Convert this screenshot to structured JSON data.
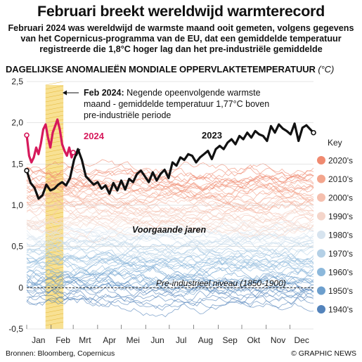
{
  "title": "Februari breekt wereldwijd warmterecord",
  "subtitle": "Februari 2024 was wereldwijd de warmste maand ooit gemeten, volgens gegevens van het Copernicus-programma van de EU, dat een gemiddelde temperatuur registreerde die 1,8°C hoger lag dan het pre-industriële gemiddelde",
  "axis_title": "DAGELIJKSE ANOMALIEËN MONDIALE OPPERVLAKTETEMPERATUUR",
  "axis_unit": "(°C)",
  "annotation": {
    "bold": "Feb 2024:",
    "lines": [
      " Negende opeenvolgende warmste",
      "maand - gemiddelde temperatuur 1,77°C boven",
      "pre-industriële periode"
    ]
  },
  "labels": {
    "previous_years": "Voorgaande jaren",
    "baseline": "Pre-industrieel niveau (1850-1900)",
    "year_2024": "2024",
    "year_2023": "2023",
    "key_title": "Key"
  },
  "source": "Bronnen: Bloomberg, Copernicus",
  "credit": "© GRAPHIC NEWS",
  "colors": {
    "series_2024": "#d6195b",
    "series_2023": "#111111",
    "highlight": "#f3c83a",
    "key": [
      "#f08a70",
      "#f3a58d",
      "#f5bfae",
      "#f4d5ca",
      "#d7e4ef",
      "#b4d0e6",
      "#8cb8db",
      "#6d9fcd",
      "#5383bb"
    ]
  },
  "chart_data": {
    "type": "line",
    "title": "DAGELIJKSE ANOMALIEËN MONDIALE OPPERVLAKTETEMPERATUUR",
    "ylabel": "°C",
    "ylim": [
      -0.5,
      2.5
    ],
    "yticks": [
      "2,5",
      "2,0",
      "1,5",
      "1,0",
      "0,5",
      "0",
      "-0,5"
    ],
    "ytick_values": [
      2.5,
      2.0,
      1.5,
      1.0,
      0.5,
      0,
      -0.5
    ],
    "categories": [
      "Jan",
      "Feb",
      "Mrt",
      "Apr",
      "Mei",
      "Jun",
      "Jul",
      "Aug",
      "Sep",
      "Okt",
      "Nov",
      "Dec"
    ],
    "baseline": 0,
    "highlight_month": "Feb",
    "legend_position": "right",
    "decades": [
      "2020's",
      "2010's",
      "2000's",
      "1990's",
      "1980's",
      "1970's",
      "1960's",
      "1950's",
      "1940's"
    ],
    "series": [
      {
        "name": "2023",
        "x": [
          1,
          6,
          11,
          16,
          21,
          26,
          31,
          36,
          41,
          46,
          51,
          56,
          61,
          66,
          71,
          76,
          81,
          86,
          91,
          96,
          101,
          106,
          111,
          116,
          121,
          126,
          131,
          136,
          141,
          146,
          151,
          156,
          161,
          166,
          171,
          176,
          181,
          186,
          191,
          196,
          201,
          206,
          211,
          216,
          221,
          226,
          231,
          236,
          241,
          246,
          251,
          256,
          261,
          266,
          271,
          276,
          281,
          286,
          291,
          296,
          301,
          306,
          311,
          316,
          321,
          326,
          331,
          336,
          341,
          346,
          351,
          356,
          361,
          365
        ],
        "values": [
          1.42,
          1.27,
          1.21,
          1.08,
          1.12,
          1.25,
          1.18,
          1.2,
          1.25,
          1.28,
          1.24,
          1.33,
          1.55,
          1.68,
          1.55,
          1.35,
          1.3,
          1.25,
          1.28,
          1.2,
          1.24,
          1.14,
          1.27,
          1.18,
          1.3,
          1.19,
          1.32,
          1.28,
          1.38,
          1.42,
          1.35,
          1.28,
          1.4,
          1.3,
          1.38,
          1.43,
          1.33,
          1.52,
          1.48,
          1.58,
          1.55,
          1.62,
          1.6,
          1.52,
          1.58,
          1.62,
          1.66,
          1.56,
          1.68,
          1.72,
          1.68,
          1.76,
          1.8,
          1.74,
          1.84,
          1.8,
          1.88,
          1.82,
          1.9,
          1.86,
          1.84,
          1.78,
          1.96,
          1.88,
          1.98,
          1.93,
          1.9,
          1.86,
          1.99,
          1.78,
          1.94,
          1.97,
          1.92,
          1.88
        ]
      },
      {
        "name": "2024",
        "x": [
          1,
          4,
          7,
          10,
          13,
          16,
          19,
          22,
          25,
          28,
          31,
          34,
          37,
          40,
          43,
          46,
          49,
          52,
          55,
          58,
          60
        ],
        "values": [
          1.85,
          1.6,
          1.52,
          1.58,
          1.7,
          1.62,
          1.75,
          1.92,
          1.98,
          1.82,
          1.7,
          1.88,
          1.96,
          2.04,
          1.92,
          1.74,
          1.66,
          1.6,
          1.7,
          1.58,
          1.64
        ]
      }
    ]
  }
}
